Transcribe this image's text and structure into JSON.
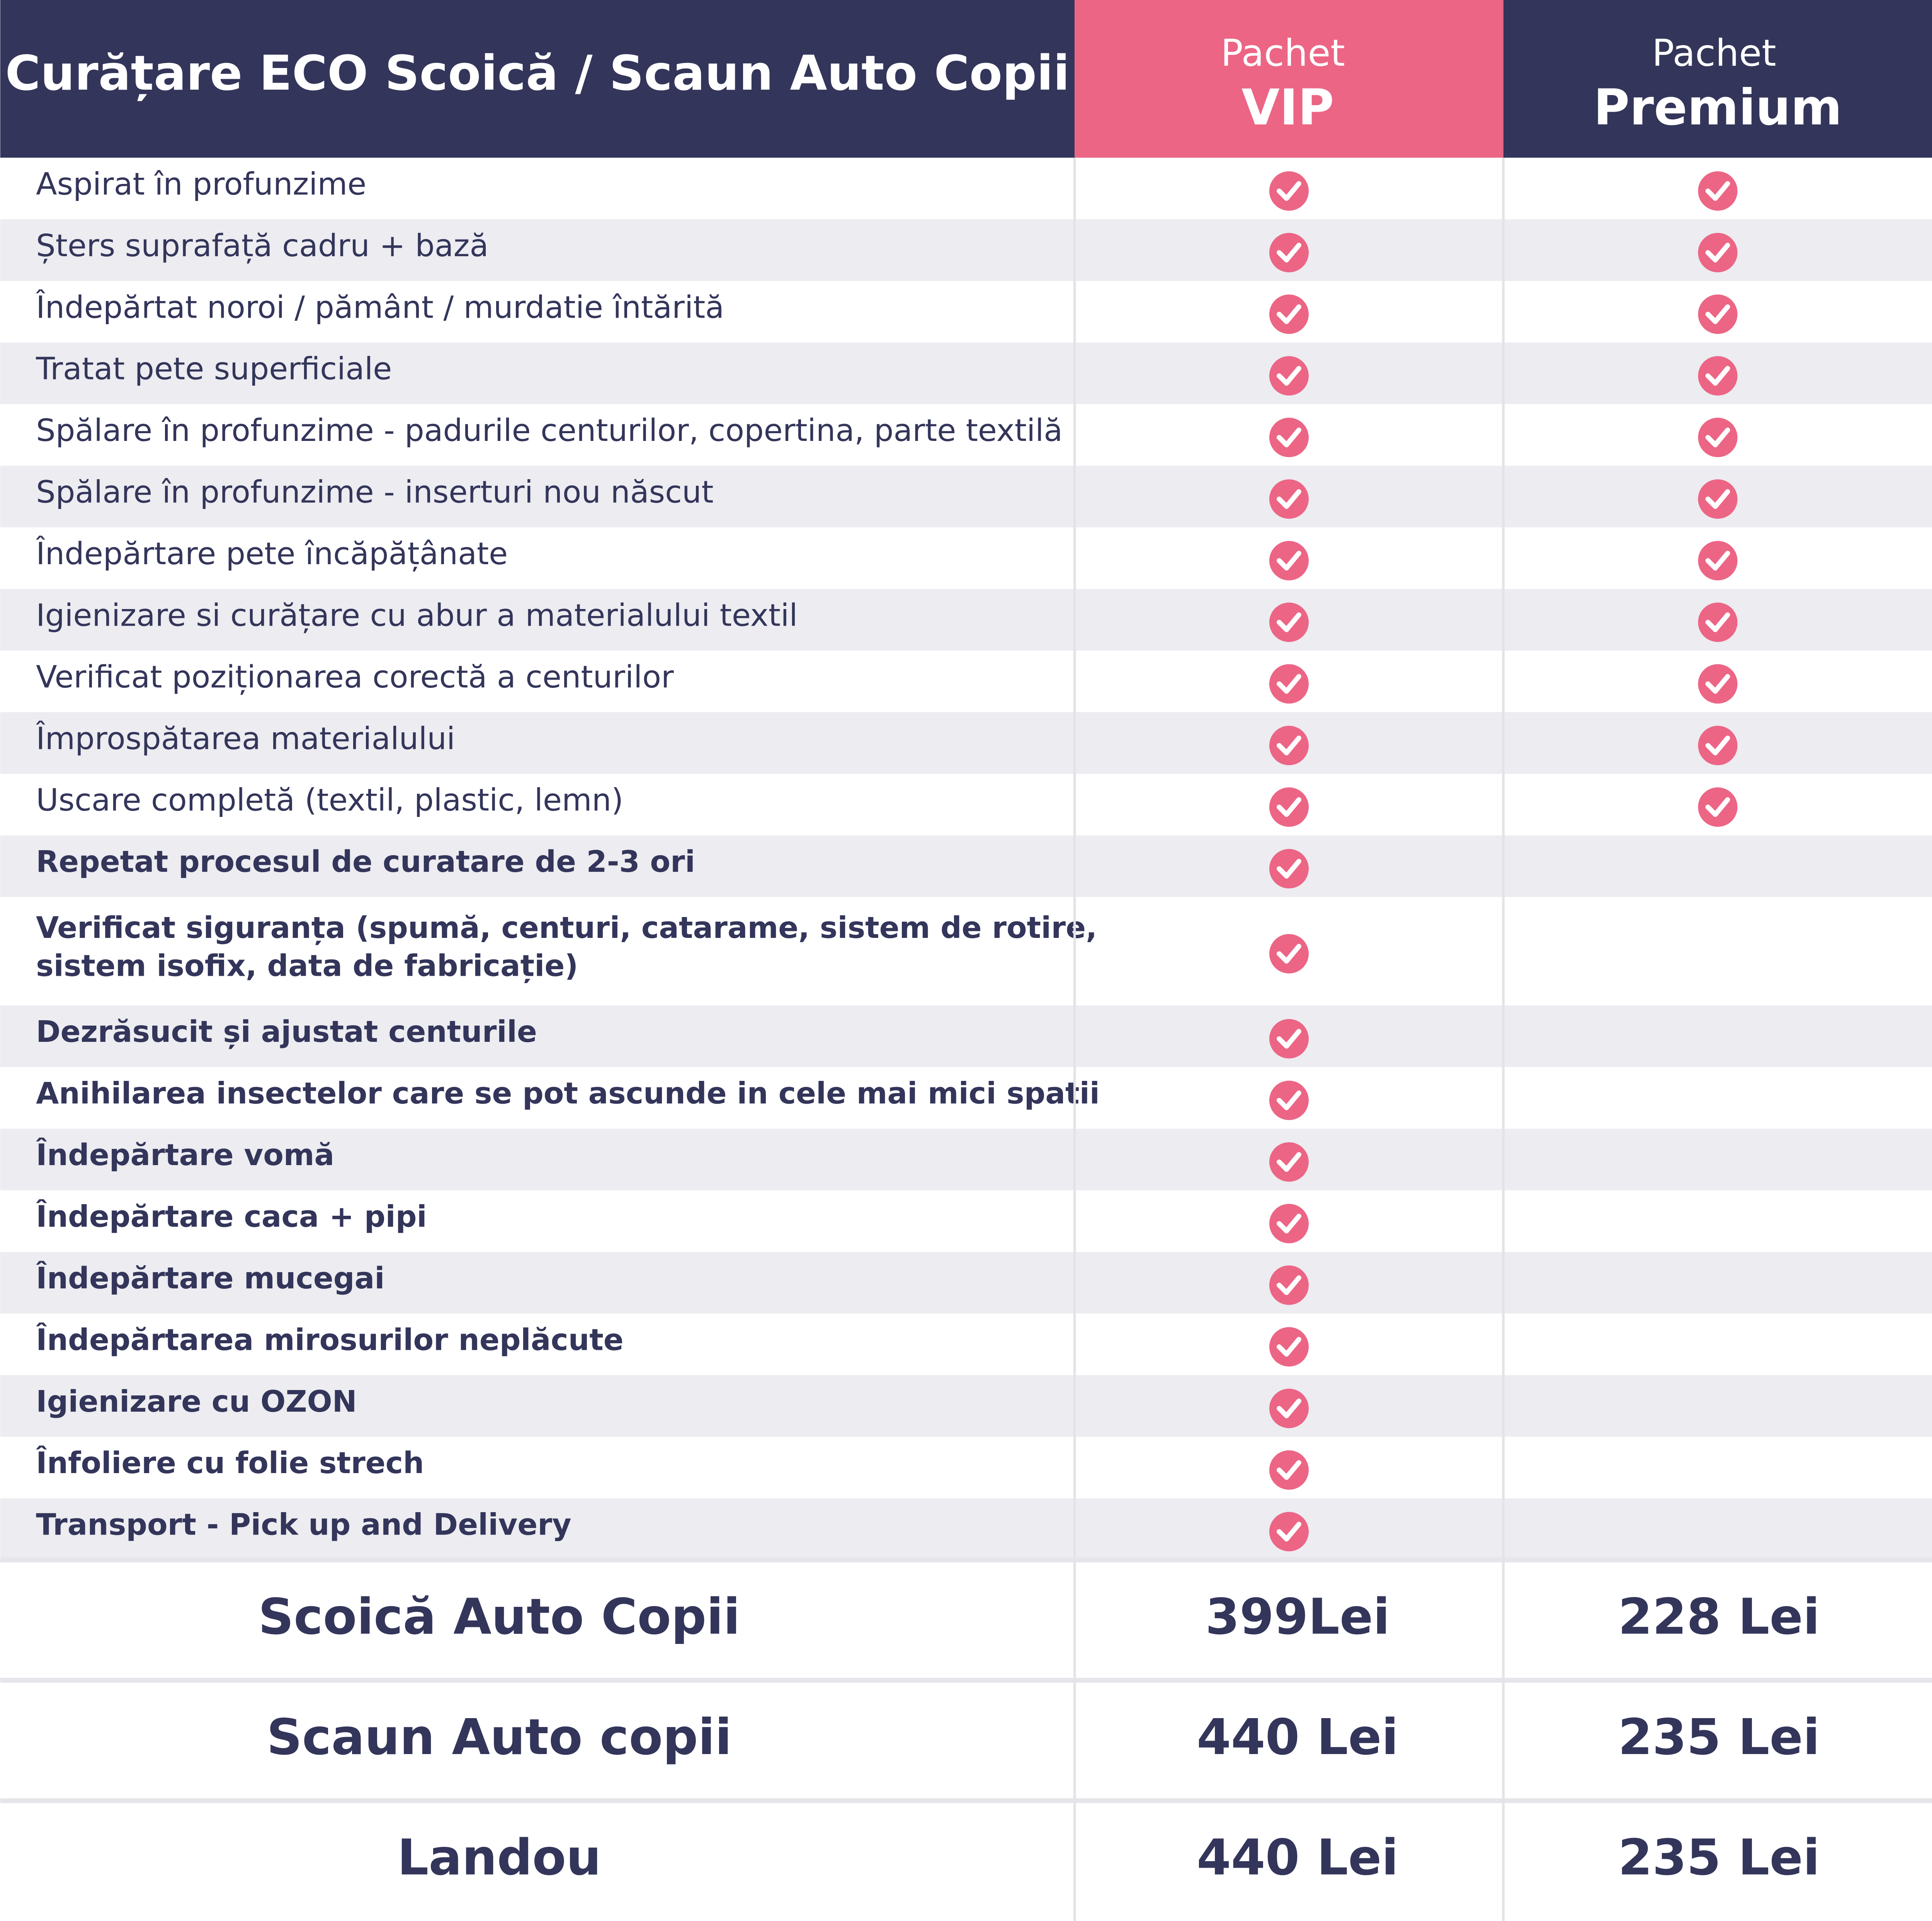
{
  "header": {
    "title": "Curățare ECO Scoică / Scaun Auto Copii",
    "packages": [
      {
        "small": "Pachet",
        "big": "VIP"
      },
      {
        "small": "Pachet",
        "big": "Premium"
      }
    ]
  },
  "table": {
    "rows": [
      {
        "lines": [
          "Aspirat  în profunzime"
        ],
        "bold": false,
        "vip": true,
        "premium": true
      },
      {
        "lines": [
          "Șters suprafață cadru + bază"
        ],
        "bold": false,
        "vip": true,
        "premium": true
      },
      {
        "lines": [
          "Îndepărtat noroi / pământ / murdatie întărită"
        ],
        "bold": false,
        "vip": true,
        "premium": true
      },
      {
        "lines": [
          "Tratat pete superficiale"
        ],
        "bold": false,
        "vip": true,
        "premium": true
      },
      {
        "lines": [
          "Spălare în profunzime - padurile centurilor, copertina, parte textilă"
        ],
        "bold": false,
        "vip": true,
        "premium": true
      },
      {
        "lines": [
          "Spălare în profunzime - inserturi nou născut"
        ],
        "bold": false,
        "vip": true,
        "premium": true
      },
      {
        "lines": [
          "Îndepărtare pete încăpățânate"
        ],
        "bold": false,
        "vip": true,
        "premium": true
      },
      {
        "lines": [
          "Igienizare si curățare cu abur a materialului textil"
        ],
        "bold": false,
        "vip": true,
        "premium": true
      },
      {
        "lines": [
          "Verificat poziționarea corectă a centurilor"
        ],
        "bold": false,
        "vip": true,
        "premium": true
      },
      {
        "lines": [
          "Împrospătarea materialului"
        ],
        "bold": false,
        "vip": true,
        "premium": true
      },
      {
        "lines": [
          "Uscare completă (textil, plastic, lemn)"
        ],
        "bold": false,
        "vip": true,
        "premium": true
      },
      {
        "lines": [
          "Repetat procesul de curatare de 2-3 ori"
        ],
        "bold": true,
        "vip": true,
        "premium": false
      },
      {
        "lines": [
          "Verificat siguranța (spumă, centuri, catarame, sistem de rotire,",
          "sistem isofix, data de fabricație)"
        ],
        "bold": true,
        "vip": true,
        "premium": false
      },
      {
        "lines": [
          "Dezrăsucit și ajustat centurile"
        ],
        "bold": true,
        "vip": true,
        "premium": false
      },
      {
        "lines": [
          "Anihilarea insectelor care se pot ascunde in cele mai mici spatii"
        ],
        "bold": true,
        "vip": true,
        "premium": false
      },
      {
        "lines": [
          "Îndepărtare vomă"
        ],
        "bold": true,
        "vip": true,
        "premium": false
      },
      {
        "lines": [
          "Îndepărtare caca + pipi"
        ],
        "bold": true,
        "vip": true,
        "premium": false
      },
      {
        "lines": [
          "Îndepărtare mucegai"
        ],
        "bold": true,
        "vip": true,
        "premium": false
      },
      {
        "lines": [
          "Îndepărtarea mirosurilor neplăcute"
        ],
        "bold": true,
        "vip": true,
        "premium": false
      },
      {
        "lines": [
          "Igienizare cu OZON"
        ],
        "bold": true,
        "vip": true,
        "premium": false
      },
      {
        "lines": [
          "Înfoliere cu folie strech"
        ],
        "bold": true,
        "vip": true,
        "premium": false
      },
      {
        "lines": [
          "Transport - Pick up and Delivery"
        ],
        "bold": true,
        "vip": true,
        "premium": false
      }
    ]
  },
  "prices": [
    {
      "label": "Scoică Auto Copii",
      "vip": "399Lei",
      "premium": "228 Lei"
    },
    {
      "label": "Scaun Auto copii",
      "vip": "440 Lei",
      "premium": "235 Lei"
    },
    {
      "label": "Landou",
      "vip": "440 Lei",
      "premium": "235 Lei"
    }
  ]
}
